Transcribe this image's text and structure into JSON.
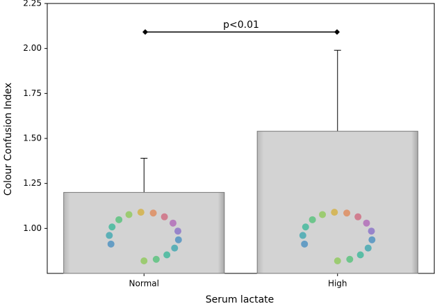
{
  "chart_data": {
    "type": "bar",
    "xlabel": "Serum lactate",
    "ylabel": "Colour Confusion Index",
    "categories": [
      "Normal",
      "High"
    ],
    "values": [
      1.2,
      1.54
    ],
    "errors": [
      0.19,
      0.45
    ],
    "color": "#d3d3d3",
    "ylim": [
      0.75,
      2.25
    ],
    "yticks": [
      {
        "value": 1.0,
        "label": "1.00"
      },
      {
        "value": 1.25,
        "label": "1.25"
      },
      {
        "value": 1.5,
        "label": "1.50"
      },
      {
        "value": 1.75,
        "label": "1.75"
      },
      {
        "value": 2.0,
        "label": "2.00"
      },
      {
        "value": 2.25,
        "label": "2.25"
      }
    ],
    "annotation": "p<0.01",
    "grid": false
  }
}
